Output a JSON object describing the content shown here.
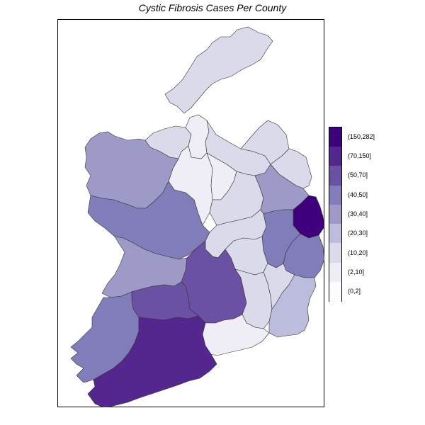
{
  "title": "Cystic Fibrosis Cases Per County",
  "legend": {
    "bins": [
      {
        "label": "(150,282]",
        "color": "#3f007d"
      },
      {
        "label": "(70,150]",
        "color": "#54278f"
      },
      {
        "label": "(50,70]",
        "color": "#6a51a3"
      },
      {
        "label": "(40,50]",
        "color": "#807dba"
      },
      {
        "label": "(30,40]",
        "color": "#9e9ac8"
      },
      {
        "label": "(20,30]",
        "color": "#bcbddc"
      },
      {
        "label": "(10,20]",
        "color": "#dadaeb"
      },
      {
        "label": "(2,10]",
        "color": "#efedf5"
      },
      {
        "label": "(0,2]",
        "color": "#fcfbfd"
      }
    ]
  },
  "counties": [
    {
      "name": "Donegal",
      "bin": "(10,20]"
    },
    {
      "name": "Sligo",
      "bin": "(10,20]"
    },
    {
      "name": "Leitrim",
      "bin": "(2,10]"
    },
    {
      "name": "Roscommon",
      "bin": "(2,10]"
    },
    {
      "name": "Cavan",
      "bin": "(10,20]"
    },
    {
      "name": "Monaghan",
      "bin": "(10,20]"
    },
    {
      "name": "Louth",
      "bin": "(10,20]"
    },
    {
      "name": "Longford",
      "bin": "(2,10]"
    },
    {
      "name": "Westmeath",
      "bin": "(10,20]"
    },
    {
      "name": "Meath",
      "bin": "(30,40]"
    },
    {
      "name": "Dublin",
      "bin": "(150,282]"
    },
    {
      "name": "Mayo",
      "bin": "(30,40]"
    },
    {
      "name": "Galway",
      "bin": "(40,50]"
    },
    {
      "name": "Offaly",
      "bin": "(10,20]"
    },
    {
      "name": "Kildare",
      "bin": "(40,50]"
    },
    {
      "name": "Wicklow",
      "bin": "(40,50]"
    },
    {
      "name": "Laois",
      "bin": "(10,20]"
    },
    {
      "name": "Clare",
      "bin": "(30,40]"
    },
    {
      "name": "Tipperary",
      "bin": "(50,70]"
    },
    {
      "name": "Kilkenny",
      "bin": "(10,20]"
    },
    {
      "name": "Carlow",
      "bin": "(10,20]"
    },
    {
      "name": "Wexford",
      "bin": "(20,30]"
    },
    {
      "name": "Limerick",
      "bin": "(50,70]"
    },
    {
      "name": "Kerry",
      "bin": "(40,50]"
    },
    {
      "name": "Cork",
      "bin": "(70,150]"
    },
    {
      "name": "Waterford",
      "bin": "(2,10]"
    }
  ]
}
